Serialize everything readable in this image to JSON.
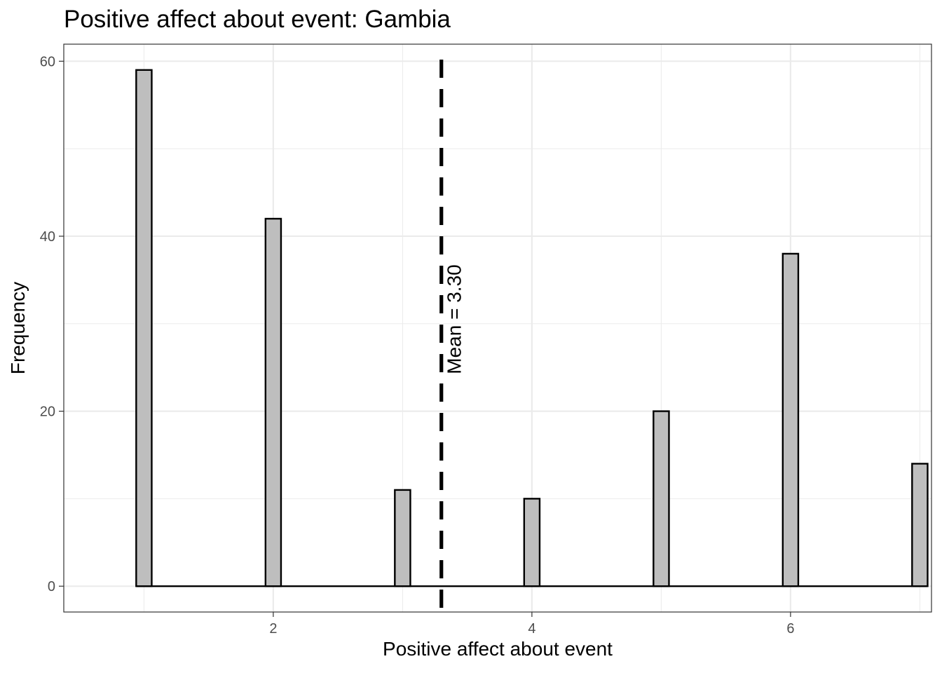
{
  "chart_data": {
    "type": "bar",
    "title": "Positive affect about event: Gambia",
    "xlabel": "Positive affect about event",
    "ylabel": "Frequency",
    "x": [
      1,
      2,
      3,
      4,
      5,
      6,
      7
    ],
    "values": [
      59,
      42,
      11,
      10,
      20,
      38,
      14
    ],
    "xlim": [
      0.38,
      7.09
    ],
    "ylim": [
      -2.95,
      61.95
    ],
    "x_ticks": [
      2,
      4,
      6
    ],
    "x_tick_labels": [
      "2",
      "4",
      "6"
    ],
    "y_ticks": [
      0,
      20,
      40,
      60
    ],
    "y_tick_labels": [
      "0",
      "20",
      "40",
      "60"
    ],
    "grid": true,
    "bar_fill": "#bebebe",
    "bar_stroke": "#000000",
    "mean": 3.3,
    "mean_label": "Mean = 3.30",
    "theme": "bw"
  }
}
